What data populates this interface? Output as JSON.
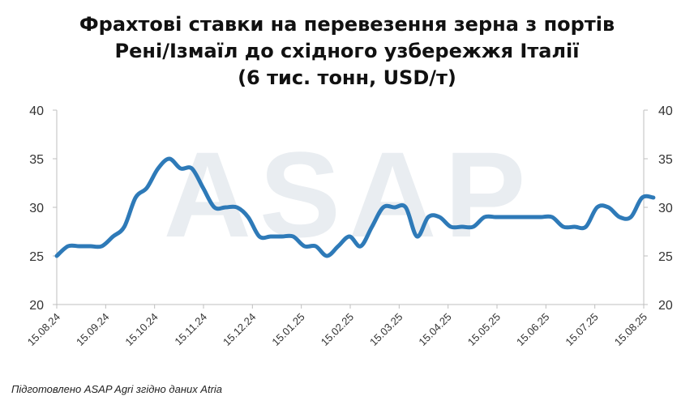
{
  "title_lines": [
    "Фрахтові ставки на перевезення зерна з портів",
    "Рені/Ізмаїл до східного узбережжя Італії",
    "(6 тис. тонн, USD/т)"
  ],
  "footnote": "Підготовлено ASAP Agri згідно даних Atria",
  "watermark": "ASAP",
  "colors": {
    "line": "#2e7ab8",
    "axis": "#bfbfbf",
    "watermark": "#e9edf1"
  },
  "chart_data": {
    "type": "line",
    "title": "Фрахтові ставки на перевезення зерна з портів Рені/Ізмаїл до східного узбережжя Італії (6 тис. тонн, USD/т)",
    "xlabel": "",
    "ylabel": "",
    "ylim": [
      20,
      40
    ],
    "yticks": [
      20,
      25,
      30,
      35,
      40
    ],
    "secondary_y_axis": true,
    "grid": false,
    "x_tick_labels": [
      "15.08.24",
      "15.09.24",
      "15.10.24",
      "15.11.24",
      "15.12.24",
      "15.01.25",
      "15.02.25",
      "15.03.25",
      "15.04.25",
      "15.05.25",
      "15.06.25",
      "15.07.25",
      "15.08.25"
    ],
    "series": [
      {
        "values": [
          {
            "x": "2024-08-15",
            "y": 25
          },
          {
            "x": "2024-08-22",
            "y": 26
          },
          {
            "x": "2024-08-29",
            "y": 26
          },
          {
            "x": "2024-09-05",
            "y": 26
          },
          {
            "x": "2024-09-12",
            "y": 26
          },
          {
            "x": "2024-09-19",
            "y": 27
          },
          {
            "x": "2024-09-26",
            "y": 28
          },
          {
            "x": "2024-10-03",
            "y": 31
          },
          {
            "x": "2024-10-10",
            "y": 32
          },
          {
            "x": "2024-10-17",
            "y": 34
          },
          {
            "x": "2024-10-24",
            "y": 35
          },
          {
            "x": "2024-10-31",
            "y": 34
          },
          {
            "x": "2024-11-07",
            "y": 34
          },
          {
            "x": "2024-11-14",
            "y": 32
          },
          {
            "x": "2024-11-21",
            "y": 30
          },
          {
            "x": "2024-11-28",
            "y": 30
          },
          {
            "x": "2024-12-05",
            "y": 30
          },
          {
            "x": "2024-12-12",
            "y": 29
          },
          {
            "x": "2024-12-19",
            "y": 27
          },
          {
            "x": "2024-12-26",
            "y": 27
          },
          {
            "x": "2025-01-02",
            "y": 27
          },
          {
            "x": "2025-01-09",
            "y": 27
          },
          {
            "x": "2025-01-16",
            "y": 26
          },
          {
            "x": "2025-01-23",
            "y": 26
          },
          {
            "x": "2025-01-30",
            "y": 25
          },
          {
            "x": "2025-02-06",
            "y": 26
          },
          {
            "x": "2025-02-13",
            "y": 27
          },
          {
            "x": "2025-02-20",
            "y": 26
          },
          {
            "x": "2025-02-27",
            "y": 28
          },
          {
            "x": "2025-03-06",
            "y": 30
          },
          {
            "x": "2025-03-13",
            "y": 30
          },
          {
            "x": "2025-03-20",
            "y": 30
          },
          {
            "x": "2025-03-27",
            "y": 27
          },
          {
            "x": "2025-04-03",
            "y": 29
          },
          {
            "x": "2025-04-10",
            "y": 29
          },
          {
            "x": "2025-04-17",
            "y": 28
          },
          {
            "x": "2025-04-24",
            "y": 28
          },
          {
            "x": "2025-05-01",
            "y": 28
          },
          {
            "x": "2025-05-08",
            "y": 29
          },
          {
            "x": "2025-05-15",
            "y": 29
          },
          {
            "x": "2025-05-22",
            "y": 29
          },
          {
            "x": "2025-05-29",
            "y": 29
          },
          {
            "x": "2025-06-05",
            "y": 29
          },
          {
            "x": "2025-06-12",
            "y": 29
          },
          {
            "x": "2025-06-19",
            "y": 29
          },
          {
            "x": "2025-06-26",
            "y": 28
          },
          {
            "x": "2025-07-03",
            "y": 28
          },
          {
            "x": "2025-07-10",
            "y": 28
          },
          {
            "x": "2025-07-17",
            "y": 30
          },
          {
            "x": "2025-07-24",
            "y": 30
          },
          {
            "x": "2025-07-31",
            "y": 29
          },
          {
            "x": "2025-08-07",
            "y": 29
          },
          {
            "x": "2025-08-14",
            "y": 31
          },
          {
            "x": "2025-08-21",
            "y": 31
          }
        ]
      }
    ]
  }
}
